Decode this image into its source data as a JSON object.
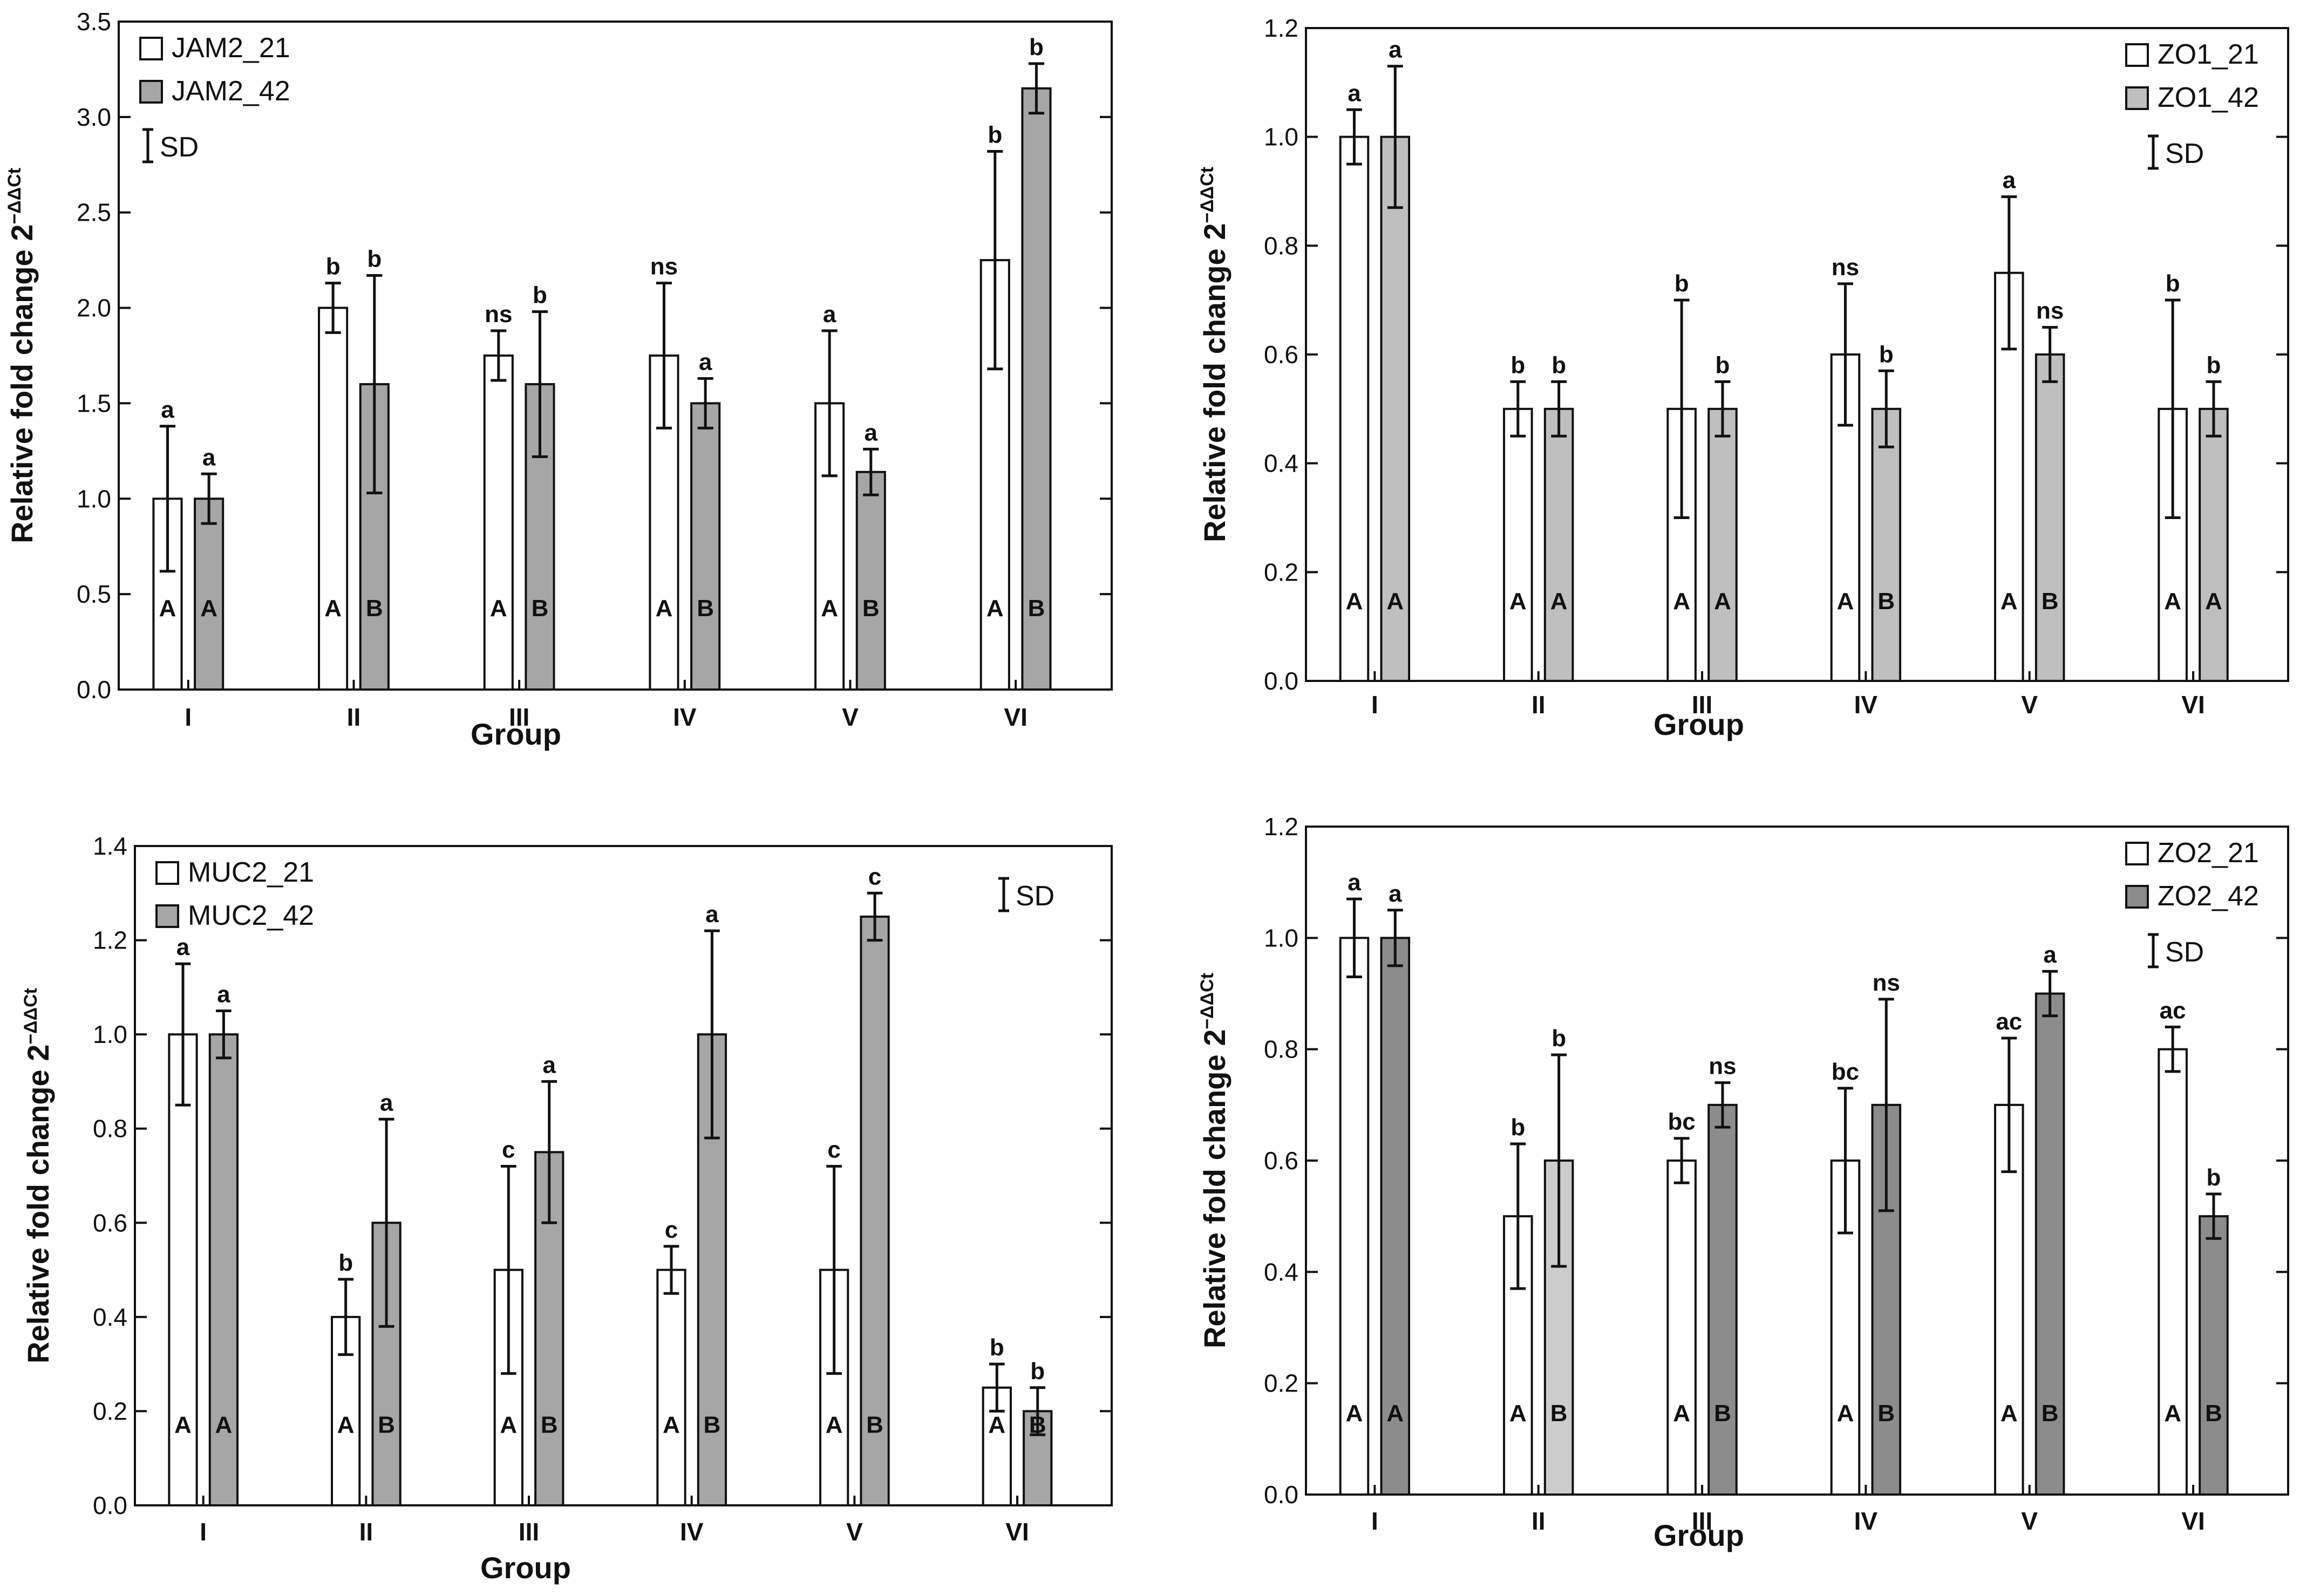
{
  "figure": {
    "x_axis_label": "Group",
    "y_axis_label_main": "Relative fold change 2",
    "y_axis_label_sup": "−ΔΔCt",
    "sd_label": "SD",
    "categories": [
      "I",
      "II",
      "III",
      "IV",
      "V",
      "VI"
    ]
  },
  "chart_data": [
    {
      "type": "bar",
      "title": "",
      "xlabel": "Group",
      "ylabel": "Relative fold change 2−ΔΔCt",
      "categories": [
        "I",
        "II",
        "III",
        "IV",
        "V",
        "VI"
      ],
      "ylim": [
        0,
        3.5
      ],
      "yticks": [
        "0.0",
        "0.5",
        "1.0",
        "1.5",
        "2.0",
        "2.5",
        "3.0",
        "3.5"
      ],
      "legend_position": "top-left",
      "sd_label": "SD",
      "series": [
        {
          "name": "JAM2_21",
          "fill": "#ffffff",
          "values": [
            1.0,
            2.0,
            1.75,
            1.75,
            1.5,
            2.25
          ],
          "sd": [
            0.38,
            0.13,
            0.13,
            0.38,
            0.38,
            0.57
          ],
          "letters": [
            "a",
            "b",
            "ns",
            "ns",
            "a",
            "b"
          ],
          "groups": [
            "A",
            "A",
            "A",
            "A",
            "A",
            "A"
          ]
        },
        {
          "name": "JAM2_42",
          "fill": "#a6a6a6",
          "values": [
            1.0,
            1.6,
            1.6,
            1.5,
            1.14,
            3.15
          ],
          "sd": [
            0.13,
            0.57,
            0.38,
            0.13,
            0.12,
            0.13
          ],
          "letters": [
            "a",
            "b",
            "b",
            "a",
            "a",
            "b"
          ],
          "groups": [
            "A",
            "B",
            "B",
            "B",
            "B",
            "B"
          ]
        }
      ]
    },
    {
      "type": "bar",
      "title": "",
      "xlabel": "Group",
      "ylabel": "Relative fold change 2−ΔΔCt",
      "categories": [
        "I",
        "II",
        "III",
        "IV",
        "V",
        "VI"
      ],
      "ylim": [
        0,
        1.2
      ],
      "yticks": [
        "0.0",
        "0.2",
        "0.4",
        "0.6",
        "0.8",
        "1.0",
        "1.2"
      ],
      "legend_position": "top-right",
      "sd_label": "SD",
      "series": [
        {
          "name": "ZO1_21",
          "fill": "#ffffff",
          "values": [
            1.0,
            0.5,
            0.5,
            0.6,
            0.75,
            0.5
          ],
          "sd": [
            0.05,
            0.05,
            0.2,
            0.13,
            0.14,
            0.2
          ],
          "letters": [
            "a",
            "b",
            "b",
            "ns",
            "a",
            "b"
          ],
          "groups": [
            "A",
            "A",
            "A",
            "A",
            "A",
            "A"
          ]
        },
        {
          "name": "ZO1_42",
          "fill": "#bfbfbf",
          "values": [
            1.0,
            0.5,
            0.5,
            0.5,
            0.6,
            0.5
          ],
          "sd": [
            0.13,
            0.05,
            0.05,
            0.07,
            0.05,
            0.05
          ],
          "letters": [
            "a",
            "b",
            "b",
            "b",
            "ns",
            "b"
          ],
          "groups": [
            "A",
            "A",
            "A",
            "B",
            "B",
            "A"
          ]
        }
      ]
    },
    {
      "type": "bar",
      "title": "",
      "xlabel": "Group",
      "ylabel": "Relative fold change 2−ΔΔCt",
      "categories": [
        "I",
        "II",
        "III",
        "IV",
        "V",
        "VI"
      ],
      "ylim": [
        0,
        1.4
      ],
      "yticks": [
        "0.0",
        "0.2",
        "0.4",
        "0.6",
        "0.8",
        "1.0",
        "1.2",
        "1.4"
      ],
      "legend_position": "top-left",
      "sd_label": "SD",
      "series": [
        {
          "name": "MUC2_21",
          "fill": "#ffffff",
          "values": [
            1.0,
            0.4,
            0.5,
            0.5,
            0.5,
            0.25
          ],
          "sd": [
            0.15,
            0.08,
            0.22,
            0.05,
            0.22,
            0.05
          ],
          "letters": [
            "a",
            "b",
            "c",
            "c",
            "c",
            "b"
          ],
          "groups": [
            "A",
            "A",
            "A",
            "A",
            "A",
            "A"
          ]
        },
        {
          "name": "MUC2_42",
          "fill": "#a6a6a6",
          "values": [
            1.0,
            0.6,
            0.75,
            1.0,
            1.25,
            0.2
          ],
          "sd": [
            0.05,
            0.22,
            0.15,
            0.22,
            0.05,
            0.05
          ],
          "letters": [
            "a",
            "a",
            "a",
            "a",
            "c",
            "b"
          ],
          "groups": [
            "A",
            "B",
            "B",
            "B",
            "B",
            "B"
          ]
        }
      ]
    },
    {
      "type": "bar",
      "title": "",
      "xlabel": "Group",
      "ylabel": "Relative fold change 2−ΔΔCt",
      "categories": [
        "I",
        "II",
        "III",
        "IV",
        "V",
        "VI"
      ],
      "ylim": [
        0,
        1.2
      ],
      "yticks": [
        "0.0",
        "0.2",
        "0.4",
        "0.6",
        "0.8",
        "1.0",
        "1.2"
      ],
      "legend_position": "top-right",
      "sd_label": "SD",
      "series": [
        {
          "name": "ZO2_21",
          "fill": "#ffffff",
          "values": [
            1.0,
            0.5,
            0.6,
            0.6,
            0.7,
            0.8
          ],
          "sd": [
            0.07,
            0.13,
            0.04,
            0.13,
            0.12,
            0.04
          ],
          "letters": [
            "a",
            "b",
            "bc",
            "bc",
            "ac",
            "ac"
          ],
          "groups": [
            "A",
            "A",
            "A",
            "A",
            "A",
            "A"
          ]
        },
        {
          "name": "ZO2_42",
          "fill": "#8c8c8c",
          "values": [
            1.0,
            0.6,
            0.7,
            0.7,
            0.9,
            0.5
          ],
          "sd": [
            0.05,
            0.19,
            0.04,
            0.19,
            0.04,
            0.04
          ],
          "fills": [
            "#8c8c8c",
            "#cccccc",
            "#8c8c8c",
            "#8c8c8c",
            "#8c8c8c",
            "#8c8c8c"
          ],
          "letters": [
            "a",
            "b",
            "ns",
            "ns",
            "a",
            "b"
          ],
          "groups": [
            "A",
            "B",
            "B",
            "B",
            "B",
            "B"
          ]
        }
      ]
    }
  ]
}
